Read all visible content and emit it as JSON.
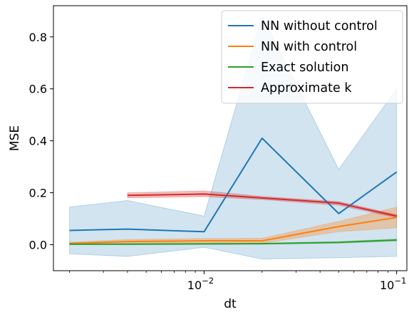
{
  "chart_data": {
    "type": "line",
    "xlabel": "dt",
    "ylabel": "MSE",
    "xscale": "log",
    "xlim": [
      0.00165,
      0.113
    ],
    "ylim": [
      -0.1,
      0.92
    ],
    "xticks": [
      {
        "value": 0.01,
        "base": "10",
        "exp": "−2"
      },
      {
        "value": 0.1,
        "base": "10",
        "exp": "−1"
      }
    ],
    "yticks": [
      {
        "value": 0.0,
        "label": "0.0"
      },
      {
        "value": 0.2,
        "label": "0.2"
      },
      {
        "value": 0.4,
        "label": "0.4"
      },
      {
        "value": 0.6,
        "label": "0.6"
      },
      {
        "value": 0.8,
        "label": "0.8"
      }
    ],
    "grid": false,
    "legend_position": "upper right",
    "series": [
      {
        "name": "NN without control",
        "color": "#1f77b4",
        "band_opacity": 0.2,
        "x": [
          0.002,
          0.004,
          0.01,
          0.02,
          0.05,
          0.1
        ],
        "y": [
          0.055,
          0.06,
          0.05,
          0.41,
          0.12,
          0.28
        ],
        "lower": [
          -0.035,
          -0.045,
          -0.01,
          -0.055,
          -0.05,
          -0.045
        ],
        "upper": [
          0.145,
          0.17,
          0.11,
          0.88,
          0.29,
          0.6
        ]
      },
      {
        "name": "NN with control",
        "color": "#ff7f0e",
        "band_opacity": 0.3,
        "x": [
          0.002,
          0.004,
          0.01,
          0.02,
          0.05,
          0.1
        ],
        "y": [
          0.005,
          0.012,
          0.015,
          0.015,
          0.07,
          0.105
        ],
        "lower": [
          0.0,
          0.004,
          0.006,
          0.006,
          0.05,
          0.065
        ],
        "upper": [
          0.01,
          0.02,
          0.024,
          0.025,
          0.09,
          0.145
        ]
      },
      {
        "name": "Exact solution",
        "color": "#2ca02c",
        "band_opacity": 0.3,
        "x": [
          0.002,
          0.004,
          0.01,
          0.02,
          0.05,
          0.1
        ],
        "y": [
          0.002,
          0.002,
          0.003,
          0.004,
          0.009,
          0.018
        ],
        "lower": [
          0.0,
          0.0,
          0.001,
          0.002,
          0.006,
          0.014
        ],
        "upper": [
          0.004,
          0.004,
          0.005,
          0.006,
          0.012,
          0.022
        ]
      },
      {
        "name": "Approximate k",
        "color": "#d62728",
        "band_opacity": 0.3,
        "x": [
          0.004,
          0.01,
          0.02,
          0.05,
          0.1
        ],
        "y": [
          0.19,
          0.195,
          0.18,
          0.16,
          0.11
        ],
        "lower": [
          0.18,
          0.185,
          0.174,
          0.152,
          0.104
        ],
        "upper": [
          0.2,
          0.207,
          0.186,
          0.166,
          0.116
        ]
      }
    ]
  }
}
